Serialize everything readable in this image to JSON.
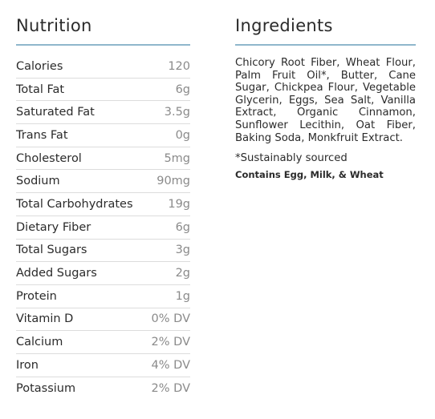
{
  "nutrition": {
    "title": "Nutrition",
    "rows": [
      {
        "label": "Calories",
        "value": "120"
      },
      {
        "label": "Total Fat",
        "value": "6g"
      },
      {
        "label": "Saturated Fat",
        "value": "3.5g"
      },
      {
        "label": "Trans Fat",
        "value": "0g"
      },
      {
        "label": "Cholesterol",
        "value": "5mg"
      },
      {
        "label": "Sodium",
        "value": "90mg"
      },
      {
        "label": "Total Carbohydrates",
        "value": "19g"
      },
      {
        "label": "Dietary Fiber",
        "value": "6g"
      },
      {
        "label": "Total Sugars",
        "value": "3g"
      },
      {
        "label": "Added Sugars",
        "value": "2g"
      },
      {
        "label": "Protein",
        "value": "1g"
      },
      {
        "label": "Vitamin D",
        "value": "0% DV"
      },
      {
        "label": "Calcium",
        "value": "2% DV"
      },
      {
        "label": "Iron",
        "value": "4% DV"
      },
      {
        "label": "Potassium",
        "value": "2% DV"
      }
    ]
  },
  "ingredients": {
    "title": "Ingredients",
    "text": "Chicory Root Fiber, Wheat Flour, Palm Fruit Oil*, Butter, Cane Sugar, Chickpea Flour, Vegetable Glycerin, Eggs, Sea Salt, Vanilla Extract, Organic Cinnamon, Sunflower Lecithin, Oat Fiber, Baking Soda, Monkfruit Extract.",
    "footnote": "*Sustainably sourced",
    "allergens": "Contains Egg, Milk, & Wheat"
  },
  "colors": {
    "rule": "#8fb7cc",
    "text": "#2b2b2b",
    "value": "#8a8a8a",
    "divider": "#dcdcdc"
  }
}
